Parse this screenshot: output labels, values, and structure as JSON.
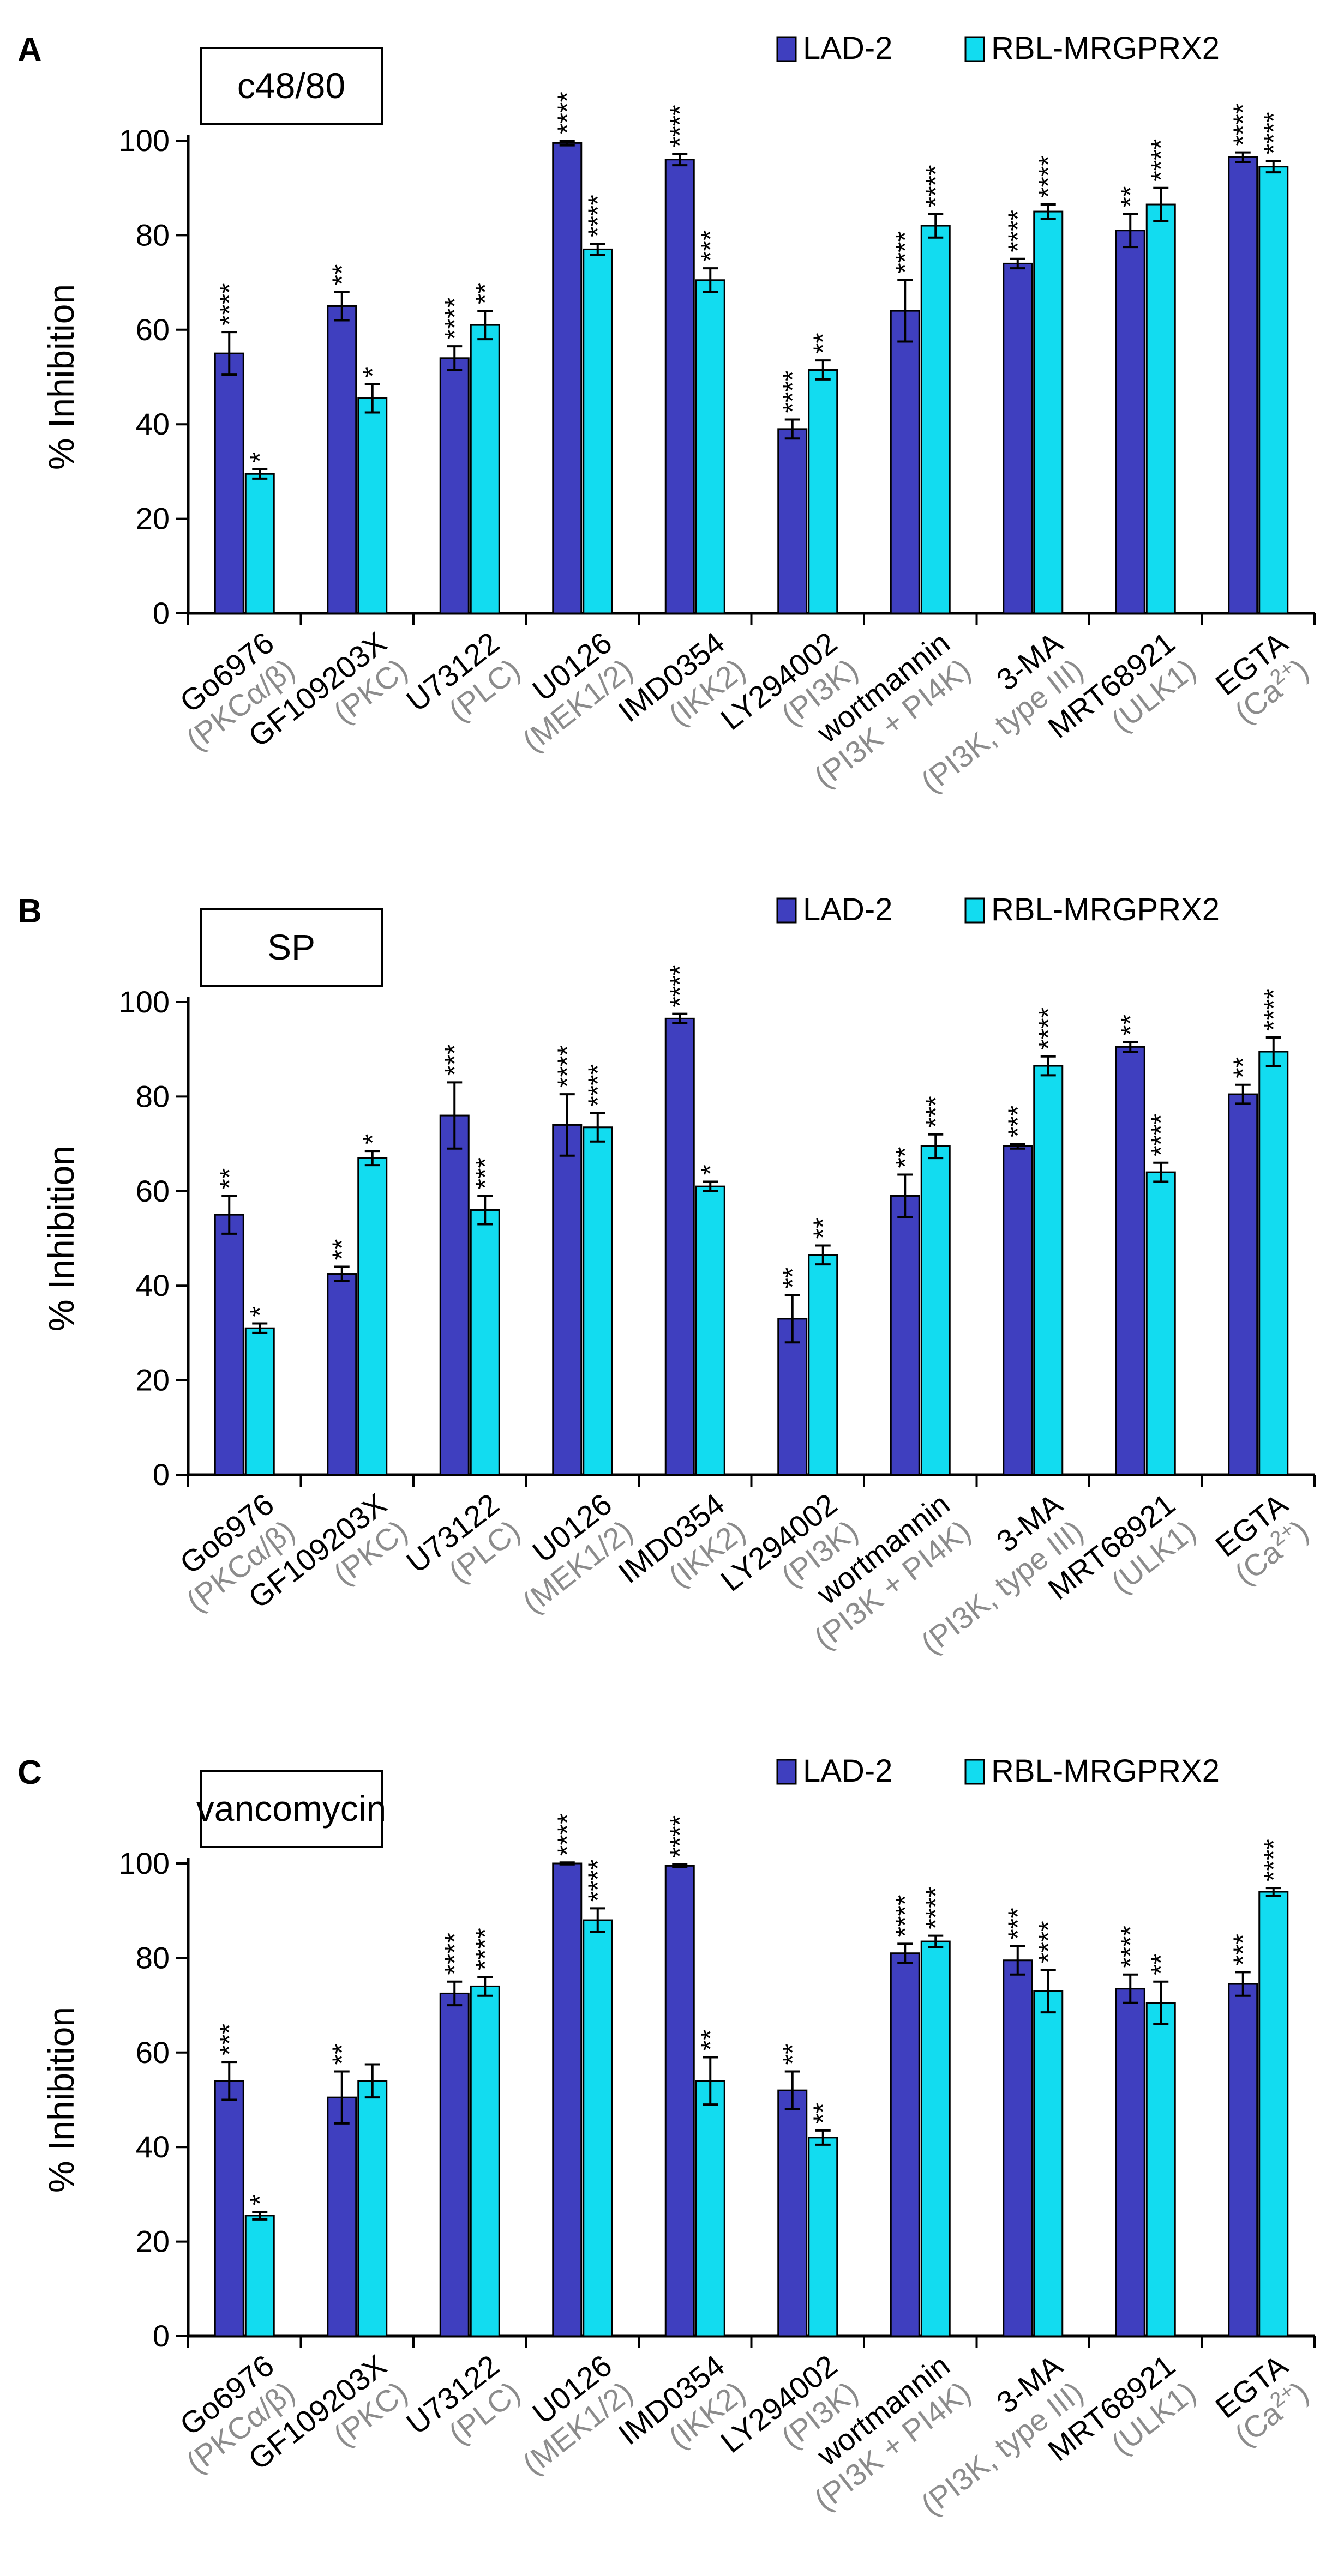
{
  "colors": {
    "lad2": "#3f3fbf",
    "rbl": "#12dcf0",
    "axis": "#000000",
    "target": "#8c8c8c"
  },
  "legend": {
    "series1": "LAD-2",
    "series2": "RBL-MRGPRX2"
  },
  "chart_data": [
    {
      "panel": "A",
      "type": "bar",
      "title": "c48/80",
      "ylabel": "% Inhibition",
      "xlabel": "",
      "ylim": [
        0,
        100
      ],
      "yticks": [
        0,
        20,
        40,
        60,
        80,
        100
      ],
      "grid": false,
      "legend_position": "top-right",
      "categories": [
        {
          "name": "Go6976",
          "target": "(PKCα/β)"
        },
        {
          "name": "GF109203X",
          "target": "(PKC)"
        },
        {
          "name": "U73122",
          "target": "(PLC)"
        },
        {
          "name": "U0126",
          "target": "(MEK1/2)"
        },
        {
          "name": "IMD0354",
          "target": "(IKK2)"
        },
        {
          "name": "LY294002",
          "target": "(PI3K)"
        },
        {
          "name": "wortmannin",
          "target": "(PI3K + PI4K)"
        },
        {
          "name": "3-MA",
          "target": "(PI3K, type III)"
        },
        {
          "name": "MRT68921",
          "target": "(ULK1)"
        },
        {
          "name": "EGTA",
          "target": "(Ca2+)"
        }
      ],
      "series": [
        {
          "name": "LAD-2",
          "values": [
            55,
            65,
            54,
            99.5,
            96,
            39,
            64,
            74,
            81,
            96.5
          ],
          "errors": [
            4.5,
            3,
            2.5,
            0.5,
            1.2,
            2,
            6.5,
            1,
            3.5,
            1
          ],
          "significance": [
            "****",
            "**",
            "****",
            "****",
            "****",
            "****",
            "****",
            "****",
            "**",
            "****"
          ]
        },
        {
          "name": "RBL-MRGPRX2",
          "values": [
            29.5,
            45.5,
            61,
            77,
            70.5,
            51.5,
            82,
            85,
            86.5,
            94.5
          ],
          "errors": [
            1,
            3,
            3,
            1.2,
            2.5,
            2,
            2.5,
            1.5,
            3.5,
            1.2
          ],
          "significance": [
            "*",
            "*",
            "**",
            "****",
            "***",
            "**",
            "****",
            "****",
            "****",
            "****"
          ]
        }
      ]
    },
    {
      "panel": "B",
      "type": "bar",
      "title": "SP",
      "ylabel": "% Inhibition",
      "xlabel": "",
      "ylim": [
        0,
        100
      ],
      "yticks": [
        0,
        20,
        40,
        60,
        80,
        100
      ],
      "grid": false,
      "legend_position": "top-right",
      "categories": [
        {
          "name": "Go6976",
          "target": "(PKCα/β)"
        },
        {
          "name": "GF109203X",
          "target": "(PKC)"
        },
        {
          "name": "U73122",
          "target": "(PLC)"
        },
        {
          "name": "U0126",
          "target": "(MEK1/2)"
        },
        {
          "name": "IMD0354",
          "target": "(IKK2)"
        },
        {
          "name": "LY294002",
          "target": "(PI3K)"
        },
        {
          "name": "wortmannin",
          "target": "(PI3K + PI4K)"
        },
        {
          "name": "3-MA",
          "target": "(PI3K, type III)"
        },
        {
          "name": "MRT68921",
          "target": "(ULK1)"
        },
        {
          "name": "EGTA",
          "target": "(Ca2+)"
        }
      ],
      "series": [
        {
          "name": "LAD-2",
          "values": [
            55,
            42.5,
            76,
            74,
            96.5,
            33,
            59,
            69.5,
            90.5,
            80.5
          ],
          "errors": [
            4,
            1.5,
            7,
            6.5,
            1,
            5,
            4.5,
            0.5,
            1,
            2
          ],
          "significance": [
            "**",
            "**",
            "***",
            "****",
            "****",
            "**",
            "**",
            "***",
            "**",
            "**"
          ]
        },
        {
          "name": "RBL-MRGPRX2",
          "values": [
            31,
            67,
            56,
            73.5,
            61,
            46.5,
            69.5,
            86.5,
            64,
            89.5
          ],
          "errors": [
            1,
            1.5,
            3,
            3,
            1,
            2,
            2.5,
            2,
            2,
            3
          ],
          "significance": [
            "*",
            "*",
            "***",
            "****",
            "*",
            "**",
            "***",
            "****",
            "****",
            "****"
          ]
        }
      ]
    },
    {
      "panel": "C",
      "type": "bar",
      "title": "vancomycin",
      "ylabel": "% Inhibition",
      "xlabel": "",
      "ylim": [
        0,
        100
      ],
      "yticks": [
        0,
        20,
        40,
        60,
        80,
        100
      ],
      "grid": false,
      "legend_position": "top-right",
      "categories": [
        {
          "name": "Go6976",
          "target": "(PKCα/β)"
        },
        {
          "name": "GF109203X",
          "target": "(PKC)"
        },
        {
          "name": "U73122",
          "target": "(PLC)"
        },
        {
          "name": "U0126",
          "target": "(MEK1/2)"
        },
        {
          "name": "IMD0354",
          "target": "(IKK2)"
        },
        {
          "name": "LY294002",
          "target": "(PI3K)"
        },
        {
          "name": "wortmannin",
          "target": "(PI3K + PI4K)"
        },
        {
          "name": "3-MA",
          "target": "(PI3K, type III)"
        },
        {
          "name": "MRT68921",
          "target": "(ULK1)"
        },
        {
          "name": "EGTA",
          "target": "(Ca2+)"
        }
      ],
      "series": [
        {
          "name": "LAD-2",
          "values": [
            54,
            50.5,
            72.5,
            100,
            99.5,
            52,
            81,
            79.5,
            73.5,
            74.5
          ],
          "errors": [
            4,
            5.5,
            2.5,
            0.2,
            0.3,
            4,
            2,
            3,
            3,
            2.5
          ],
          "significance": [
            "***",
            "**",
            "****",
            "****",
            "****",
            "**",
            "****",
            "***",
            "****",
            "***"
          ]
        },
        {
          "name": "RBL-MRGPRX2",
          "values": [
            25.5,
            54,
            74,
            88,
            54,
            42,
            83.5,
            73,
            70.5,
            94
          ],
          "errors": [
            0.8,
            3.5,
            2,
            2.5,
            5,
            1.5,
            1.2,
            4.5,
            4.5,
            0.8
          ],
          "significance": [
            "*",
            "",
            "****",
            "****",
            "**",
            "**",
            "****",
            "****",
            "**",
            "****"
          ]
        }
      ]
    }
  ]
}
